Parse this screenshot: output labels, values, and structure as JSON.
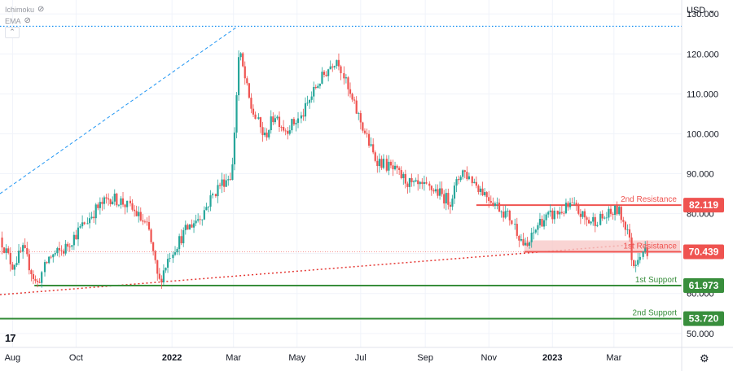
{
  "indicators": [
    {
      "label": "Ichimoku",
      "icon": "eye-off-icon"
    },
    {
      "label": "EMA",
      "icon": "eye-off-icon"
    }
  ],
  "price_axis": {
    "currency": "USD",
    "currency_icon": "chevron-down-icon"
  },
  "colors": {
    "up": "#26a69a",
    "down": "#ef5350",
    "resistance": "#ef5350",
    "support": "#388e3c",
    "trendline": "#e53935",
    "channel": "#2196f3",
    "resistance_zone": "#f8c9c8"
  },
  "chart_data": {
    "type": "candlestick",
    "instrument_currency": "USD",
    "x": {
      "ticks": [
        "Aug",
        "Oct",
        "2022",
        "Mar",
        "May",
        "Jul",
        "Sep",
        "Nov",
        "2023",
        "Mar"
      ],
      "tick_dates": [
        "2021-08-01",
        "2021-10-01",
        "2022-01-01",
        "2022-03-01",
        "2022-05-01",
        "2022-07-01",
        "2022-09-01",
        "2022-11-01",
        "2023-01-01",
        "2023-03-01"
      ],
      "range": [
        "2021-07-20",
        "2023-05-05"
      ]
    },
    "y": {
      "ticks": [
        "50.000",
        "60.000",
        "70.000",
        "80.000",
        "90.000",
        "100.000",
        "110.000",
        "120.000",
        "130.000"
      ],
      "range": [
        46.5,
        133.5
      ]
    },
    "levels": [
      {
        "name": "2nd Resistance",
        "value": 82.119,
        "label": "82.119",
        "kind": "resistance",
        "from": "2022-10-20"
      },
      {
        "name": "1st Resistance",
        "value": 70.439,
        "label": "70.439",
        "kind": "resistance_zone",
        "from": "2022-12-05",
        "zone_top": 73.3
      },
      {
        "name": "1st Support",
        "value": 61.973,
        "label": "61.973",
        "kind": "support",
        "from": "2021-08-22"
      },
      {
        "name": "2nd Support",
        "value": 53.72,
        "label": "53.720",
        "kind": "support",
        "from": "2021-07-20"
      }
    ],
    "current_price": 70.439,
    "ath_line": {
      "value": 126.9,
      "style": "dotted"
    },
    "trendline": {
      "from": [
        "2021-07-20",
        59.7
      ],
      "to": [
        "2023-04-01",
        72.5
      ],
      "style": "dotted"
    },
    "channel_line": {
      "from": [
        "2021-07-20",
        85.0
      ],
      "to": [
        "2022-03-05",
        126.9
      ],
      "style": "dashed"
    },
    "price_path": [
      [
        "2021-07-20",
        74
      ],
      [
        "2021-08-01",
        67
      ],
      [
        "2021-08-12",
        71
      ],
      [
        "2021-08-25",
        62
      ],
      [
        "2021-09-05",
        69
      ],
      [
        "2021-09-20",
        71
      ],
      [
        "2021-10-05",
        76
      ],
      [
        "2021-10-20",
        81
      ],
      [
        "2021-11-03",
        84
      ],
      [
        "2021-11-15",
        83
      ],
      [
        "2021-11-28",
        80
      ],
      [
        "2021-12-10",
        76
      ],
      [
        "2021-12-20",
        62.5
      ],
      [
        "2021-12-31",
        70
      ],
      [
        "2022-01-15",
        76
      ],
      [
        "2022-01-31",
        80
      ],
      [
        "2022-02-15",
        87
      ],
      [
        "2022-02-28",
        90
      ],
      [
        "2022-03-07",
        121
      ],
      [
        "2022-03-18",
        107
      ],
      [
        "2022-03-31",
        99
      ],
      [
        "2022-04-10",
        105
      ],
      [
        "2022-04-20",
        101
      ],
      [
        "2022-05-05",
        104
      ],
      [
        "2022-05-20",
        112
      ],
      [
        "2022-06-05",
        118
      ],
      [
        "2022-06-10",
        119
      ],
      [
        "2022-06-20",
        110
      ],
      [
        "2022-06-30",
        104
      ],
      [
        "2022-07-15",
        94
      ],
      [
        "2022-08-01",
        91
      ],
      [
        "2022-08-20",
        87
      ],
      [
        "2022-09-10",
        86
      ],
      [
        "2022-09-25",
        83
      ],
      [
        "2022-10-07",
        91
      ],
      [
        "2022-10-25",
        86
      ],
      [
        "2022-11-10",
        82
      ],
      [
        "2022-11-22",
        79
      ],
      [
        "2022-12-07",
        71
      ],
      [
        "2022-12-20",
        78
      ],
      [
        "2023-01-05",
        80
      ],
      [
        "2023-01-20",
        82
      ],
      [
        "2023-02-05",
        78
      ],
      [
        "2023-02-20",
        79
      ],
      [
        "2023-03-05",
        81
      ],
      [
        "2023-03-15",
        76
      ],
      [
        "2023-03-20",
        67
      ],
      [
        "2023-03-28",
        71
      ],
      [
        "2023-04-03",
        70.44
      ]
    ],
    "xlabel": "",
    "ylabel": "",
    "grid": true
  }
}
